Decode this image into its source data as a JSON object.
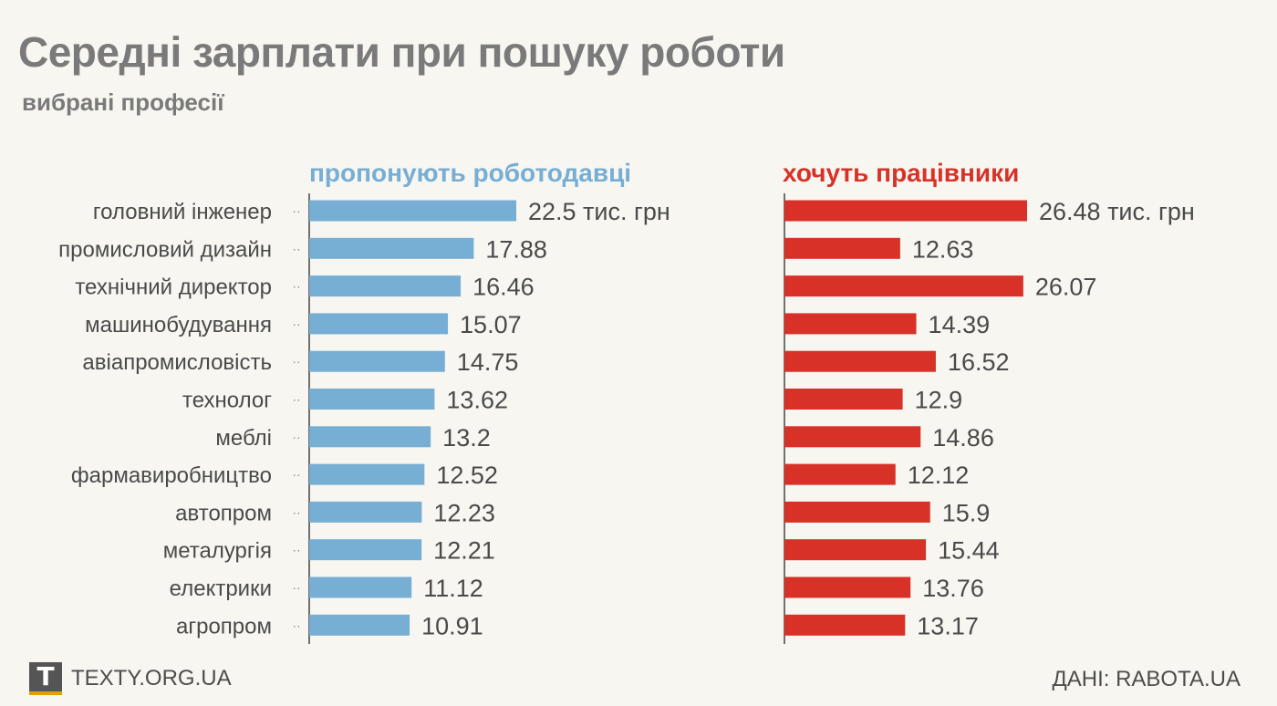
{
  "header": {
    "title": "Середні зарплати при пошуку роботи",
    "subtitle": "вибрані професії"
  },
  "footer": {
    "logo_letter": "T",
    "site": "TEXTY.ORG.UA",
    "source": "ДАНІ: RABOTA.UA"
  },
  "chart_data": {
    "type": "bar",
    "orientation": "horizontal",
    "categories": [
      "головний інженер",
      "промисловий дизайн",
      "технічний директор",
      "машинобудування",
      "авіапромисловість",
      "технолог",
      "меблі",
      "фармавиробництво",
      "автопром",
      "металургія",
      "електрики",
      "агропром"
    ],
    "unit_label": "тис. грн",
    "series": [
      {
        "name": "пропонують роботодавці",
        "color": "#76aed4",
        "values": [
          22.5,
          17.88,
          16.46,
          15.07,
          14.75,
          13.62,
          13.2,
          12.52,
          12.23,
          12.21,
          11.12,
          10.91
        ],
        "labels": [
          "22.5",
          "17.88",
          "16.46",
          "15.07",
          "14.75",
          "13.62",
          "13.2",
          "12.52",
          "12.23",
          "12.21",
          "11.12",
          "10.91"
        ]
      },
      {
        "name": "хочуть працівники",
        "color": "#d83228",
        "values": [
          26.48,
          12.63,
          26.07,
          14.39,
          16.52,
          12.9,
          14.86,
          12.12,
          15.9,
          15.44,
          13.76,
          13.17
        ],
        "labels": [
          "26.48",
          "12.63",
          "26.07",
          "14.39",
          "16.52",
          "12.9",
          "14.86",
          "12.12",
          "15.9",
          "15.44",
          "13.76",
          "13.17"
        ]
      }
    ]
  }
}
